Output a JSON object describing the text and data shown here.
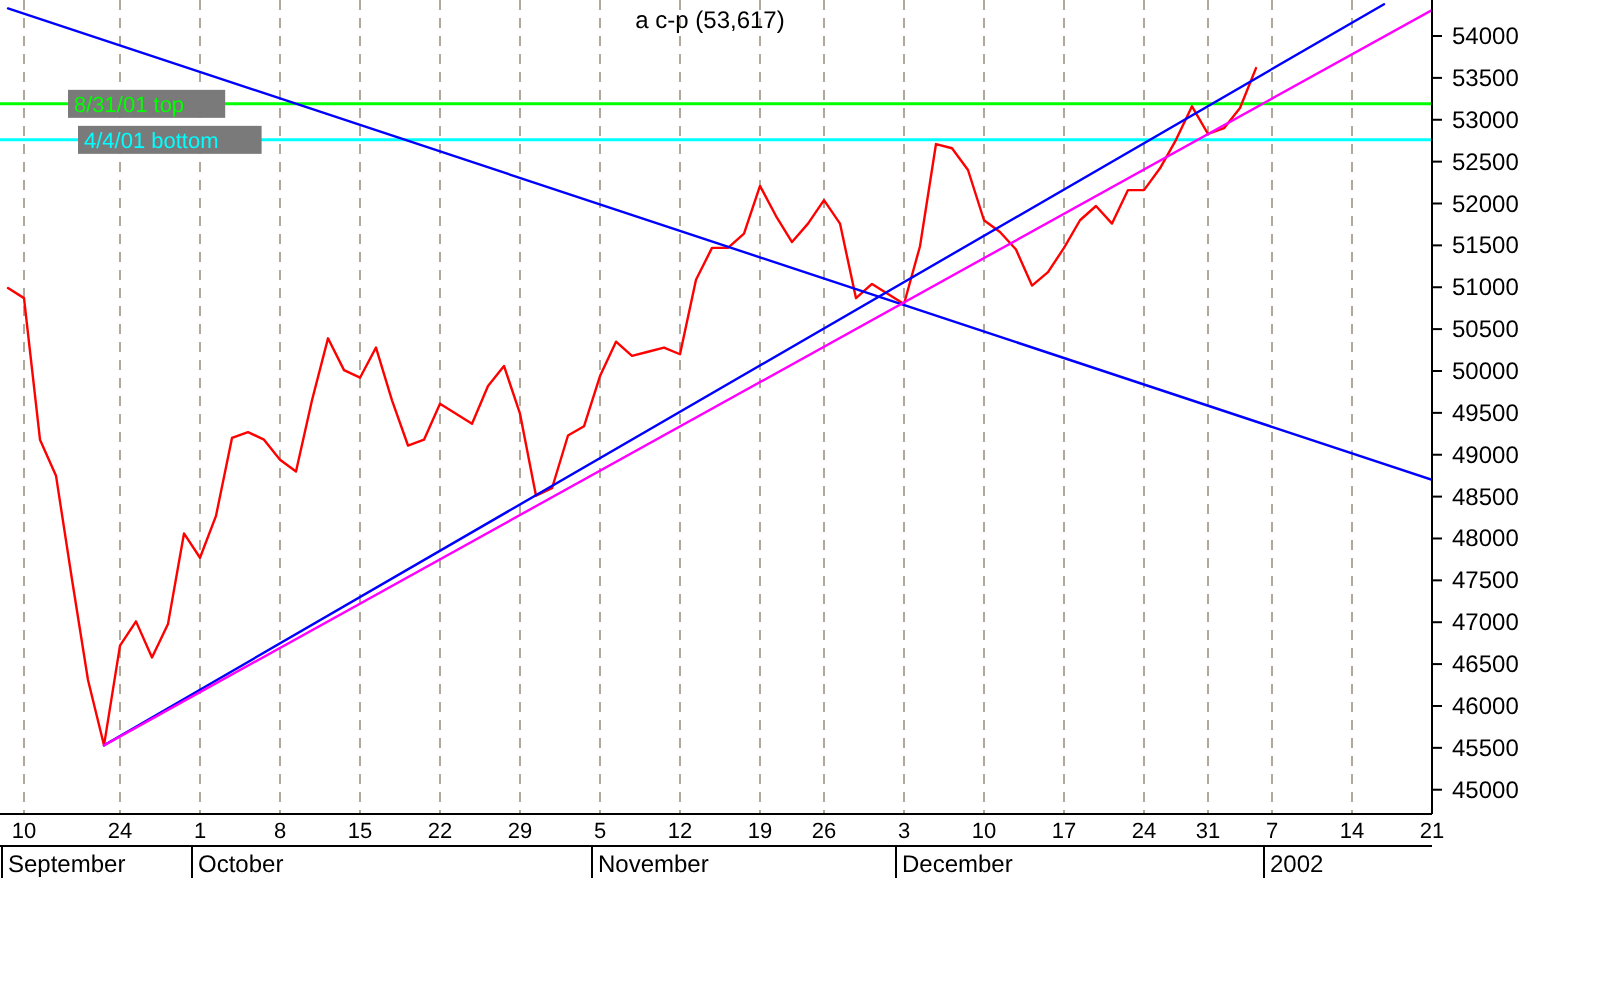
{
  "chart_data": {
    "type": "line",
    "title": "a c-p (53,617)",
    "categories": [
      null,
      "10",
      null,
      null,
      null,
      null,
      null,
      "24",
      null,
      null,
      null,
      null,
      "1",
      null,
      null,
      null,
      null,
      "8",
      null,
      null,
      null,
      null,
      "15",
      null,
      null,
      null,
      null,
      "22",
      null,
      null,
      null,
      null,
      "29",
      null,
      null,
      null,
      null,
      "5",
      null,
      null,
      null,
      null,
      "12",
      null,
      null,
      null,
      null,
      "19",
      null,
      null,
      null,
      "26",
      null,
      null,
      null,
      null,
      "3",
      null,
      null,
      null,
      null,
      "10",
      null,
      null,
      null,
      null,
      "17",
      null,
      null,
      null,
      null,
      "24",
      null,
      null,
      null,
      "31",
      null,
      null,
      null,
      "7",
      null,
      null,
      null,
      null,
      "14",
      null,
      null,
      null,
      null,
      "21"
    ],
    "series": [
      {
        "color": "#ff0000",
        "values": [
          50990,
          50870,
          49180,
          48750,
          47510,
          46310,
          45530,
          46720,
          47010,
          46580,
          46980,
          48060,
          47770,
          48270,
          49200,
          49270,
          49180,
          48940,
          48800,
          49650,
          50390,
          50010,
          49920,
          50280,
          49650,
          49110,
          49180,
          49610,
          49490,
          49370,
          49820,
          50060,
          49490,
          48510,
          48600,
          49230,
          49340,
          49940,
          50350,
          50180,
          50230,
          50280,
          50200,
          51090,
          51470,
          51470,
          51640,
          52210,
          51850,
          51540,
          51760,
          52040,
          51760,
          50870,
          51040,
          50920,
          50800,
          51490,
          52710,
          52660,
          52400,
          51800,
          51660,
          51450,
          51020,
          51180,
          51470,
          51800,
          51970,
          51760,
          52160,
          52160,
          52420,
          52760,
          53160,
          52830,
          52900,
          53140,
          53617,
          null,
          null,
          null,
          null,
          null,
          null,
          null,
          null,
          null,
          null,
          null
        ]
      },
      {
        "type": "line",
        "color": "#0000ff",
        "values": [
          54330,
          null,
          null,
          null,
          null,
          null,
          null,
          null,
          null,
          null,
          null,
          null,
          null,
          null,
          null,
          null,
          null,
          null,
          null,
          null,
          null,
          null,
          null,
          null,
          null,
          null,
          null,
          null,
          null,
          null,
          null,
          null,
          null,
          null,
          null,
          null,
          null,
          null,
          null,
          null,
          null,
          null,
          null,
          null,
          null,
          null,
          null,
          null,
          null,
          null,
          null,
          null,
          null,
          null,
          null,
          null,
          null,
          null,
          null,
          null,
          null,
          null,
          null,
          null,
          null,
          null,
          null,
          null,
          null,
          null,
          null,
          null,
          null,
          null,
          null,
          null,
          null,
          null,
          null,
          null,
          null,
          null,
          null,
          null,
          null,
          null,
          null,
          null,
          null,
          48700
        ]
      },
      {
        "type": "line",
        "color": "#0000ff",
        "values": [
          null,
          null,
          null,
          null,
          null,
          null,
          45530,
          null,
          null,
          null,
          null,
          null,
          null,
          null,
          null,
          null,
          null,
          null,
          null,
          null,
          null,
          null,
          null,
          null,
          null,
          null,
          null,
          null,
          null,
          null,
          null,
          null,
          null,
          null,
          null,
          null,
          null,
          null,
          null,
          null,
          null,
          null,
          null,
          null,
          null,
          null,
          null,
          null,
          null,
          null,
          null,
          null,
          null,
          null,
          null,
          null,
          null,
          null,
          null,
          null,
          null,
          null,
          null,
          null,
          null,
          null,
          null,
          null,
          null,
          null,
          null,
          null,
          null,
          null,
          null,
          null,
          null,
          null,
          null,
          null,
          null,
          null,
          null,
          null,
          null,
          null,
          54380,
          null,
          null,
          null
        ]
      },
      {
        "type": "line",
        "color": "#ff00ff",
        "values": [
          null,
          null,
          null,
          null,
          null,
          null,
          45530,
          null,
          null,
          null,
          null,
          null,
          null,
          null,
          null,
          null,
          null,
          null,
          null,
          null,
          null,
          null,
          null,
          null,
          null,
          null,
          null,
          null,
          null,
          null,
          null,
          null,
          null,
          null,
          null,
          null,
          null,
          null,
          null,
          null,
          null,
          null,
          null,
          null,
          null,
          null,
          null,
          null,
          null,
          null,
          null,
          null,
          null,
          null,
          null,
          null,
          null,
          null,
          null,
          null,
          null,
          null,
          null,
          null,
          null,
          null,
          null,
          null,
          null,
          null,
          null,
          null,
          null,
          null,
          null,
          null,
          null,
          null,
          null,
          null,
          null,
          null,
          null,
          null,
          null,
          null,
          null,
          null,
          null,
          54310
        ]
      }
    ],
    "ref_lines": [
      {
        "axis": "y",
        "value": 53190,
        "label": "8/31/01 top",
        "color": "#00ff00"
      },
      {
        "axis": "y",
        "value": 52760,
        "label": "4/4/01 bottom",
        "color": "#00ffff"
      }
    ],
    "annotations": [
      "September",
      "October",
      "November",
      "December",
      "2002"
    ],
    "ylim": [
      44710,
      54430
    ],
    "yticks": [
      45000,
      45500,
      46000,
      46500,
      47000,
      47500,
      48000,
      48500,
      49000,
      49500,
      50000,
      50500,
      51000,
      51500,
      52000,
      52500,
      53000,
      53500,
      54000
    ],
    "grid": "x",
    "marker": "none",
    "line_style": "solid"
  }
}
